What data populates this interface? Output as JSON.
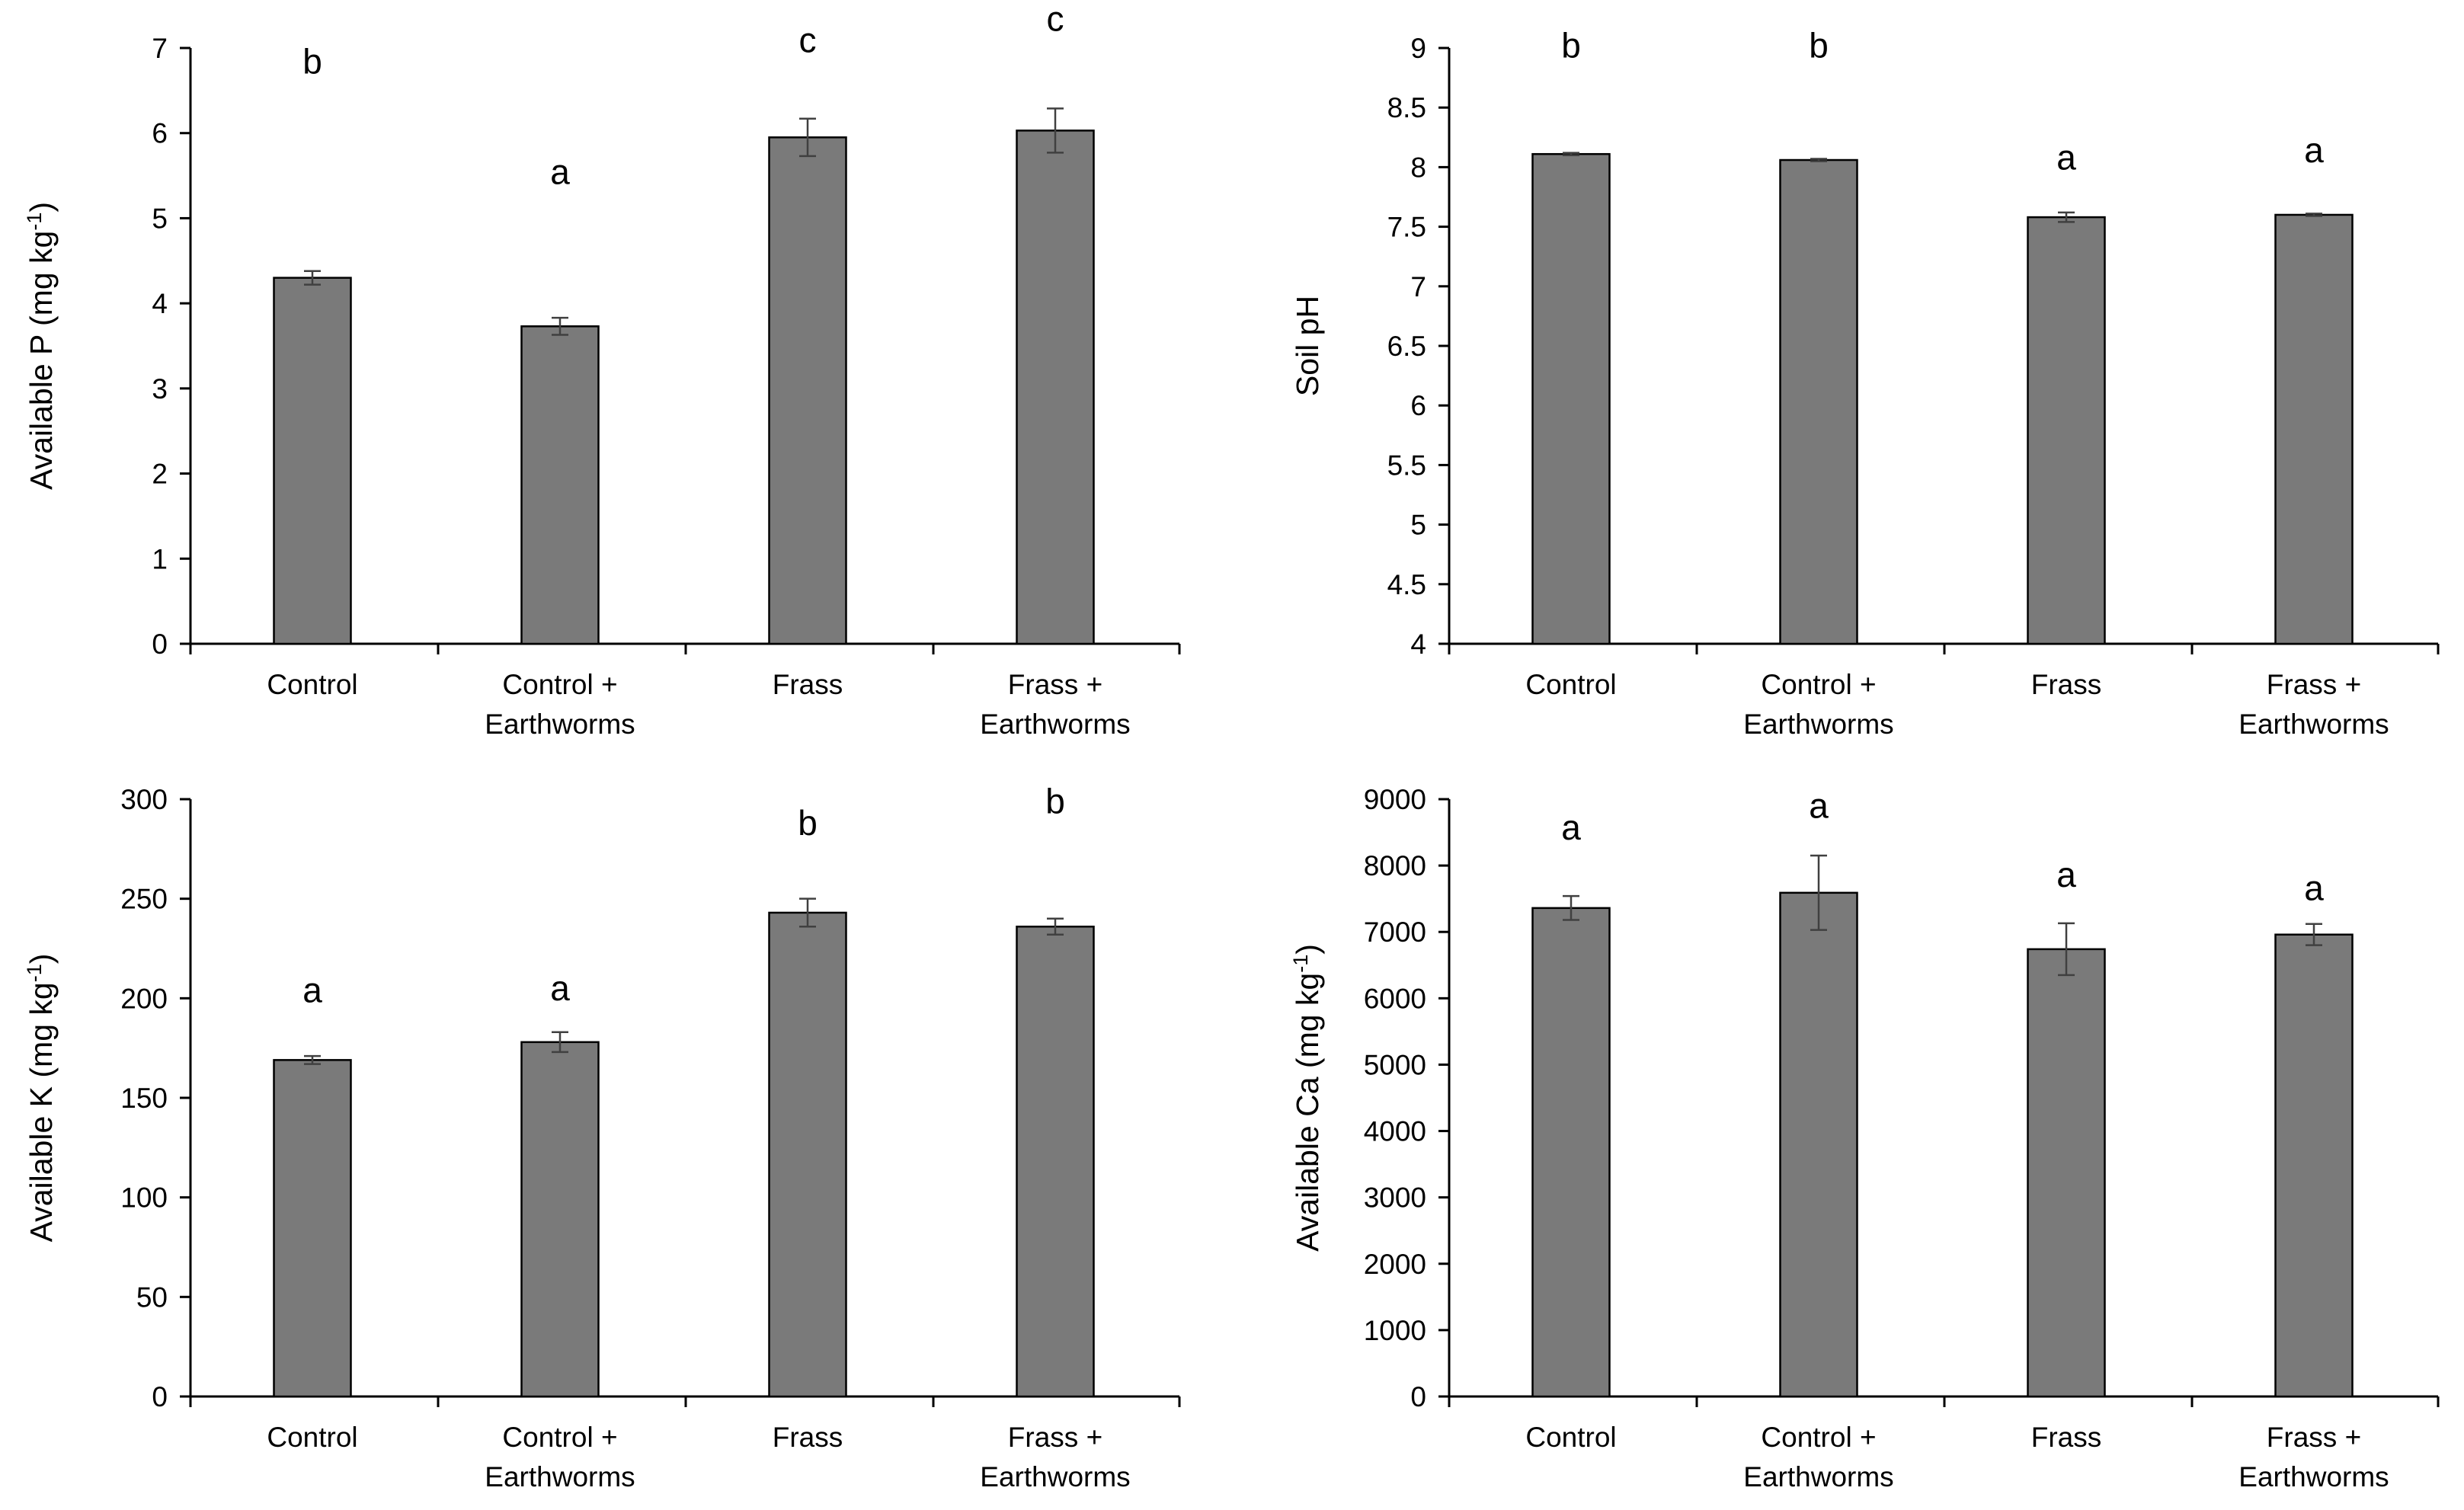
{
  "chart_data": [
    {
      "id": "p",
      "type": "bar",
      "categories": [
        [
          "Control"
        ],
        [
          "Control +",
          "Earthworms"
        ],
        [
          "Frass"
        ],
        [
          "Frass +",
          "Earthworms"
        ]
      ],
      "values": [
        4.3,
        3.73,
        5.95,
        6.03
      ],
      "errors": [
        0.08,
        0.1,
        0.22,
        0.26
      ],
      "significance": [
        "b",
        "a",
        "c",
        "c"
      ],
      "ylabel": "Available P (mg kg",
      "ylabel_sup": "-1",
      "ylabel_end": ")",
      "ylim": [
        0,
        7
      ],
      "yticks": [
        0,
        1,
        2,
        3,
        4,
        5,
        6,
        7
      ],
      "ytick_labels": [
        "0",
        "1",
        "2",
        "3",
        "4",
        "5",
        "6",
        "7"
      ],
      "sig_value": [
        6.7,
        5.4,
        6.95,
        7.2
      ]
    },
    {
      "id": "ph",
      "type": "bar",
      "categories": [
        [
          "Control"
        ],
        [
          "Control +",
          "Earthworms"
        ],
        [
          "Frass"
        ],
        [
          "Frass +",
          "Earthworms"
        ]
      ],
      "values": [
        8.11,
        8.06,
        7.58,
        7.6
      ],
      "errors": [
        0.01,
        0.01,
        0.04,
        0.01
      ],
      "significance": [
        "b",
        "b",
        "a",
        "a"
      ],
      "ylabel": "Soil pH",
      "ylabel_sup": "",
      "ylabel_end": "",
      "ylim": [
        4,
        9
      ],
      "yticks": [
        4,
        4.5,
        5,
        5.5,
        6,
        6.5,
        7,
        7.5,
        8,
        8.5,
        9
      ],
      "ytick_labels": [
        "4",
        "4.5",
        "5",
        "5.5",
        "6",
        "6.5",
        "7",
        "7.5",
        "8",
        "8.5",
        "9"
      ],
      "sig_value": [
        8.92,
        8.92,
        7.98,
        8.04
      ]
    },
    {
      "id": "k",
      "type": "bar",
      "categories": [
        [
          "Control"
        ],
        [
          "Control +",
          "Earthworms"
        ],
        [
          "Frass"
        ],
        [
          "Frass +",
          "Earthworms"
        ]
      ],
      "values": [
        169,
        178,
        243,
        236
      ],
      "errors": [
        2,
        5,
        7,
        4
      ],
      "significance": [
        "a",
        "a",
        "b",
        "b"
      ],
      "ylabel": "Available K (mg kg",
      "ylabel_sup": "-1",
      "ylabel_end": ")",
      "ylim": [
        0,
        300
      ],
      "yticks": [
        0,
        50,
        100,
        150,
        200,
        250,
        300
      ],
      "ytick_labels": [
        "0",
        "50",
        "100",
        "150",
        "200",
        "250",
        "300"
      ],
      "sig_value": [
        198,
        199,
        282,
        293
      ]
    },
    {
      "id": "ca",
      "type": "bar",
      "categories": [
        [
          "Control"
        ],
        [
          "Control +",
          "Earthworms"
        ],
        [
          "Frass"
        ],
        [
          "Frass +",
          "Earthworms"
        ]
      ],
      "values": [
        7360,
        7590,
        6740,
        6960
      ],
      "errors": [
        180,
        560,
        390,
        160
      ],
      "significance": [
        "a",
        "a",
        "a",
        "a"
      ],
      "ylabel": "Available Ca (mg kg",
      "ylabel_sup": "-1",
      "ylabel_end": ")",
      "ylim": [
        0,
        9000
      ],
      "yticks": [
        0,
        1000,
        2000,
        3000,
        4000,
        5000,
        6000,
        7000,
        8000,
        9000
      ],
      "ytick_labels": [
        "0",
        "1000",
        "2000",
        "3000",
        "4000",
        "5000",
        "6000",
        "7000",
        "8000",
        "9000"
      ],
      "sig_value": [
        8390,
        8720,
        7680,
        7480
      ]
    }
  ],
  "colors": {
    "bar_fill": "#7a7a7a",
    "bar_stroke": "#000000",
    "axis": "#000000",
    "error_bar": "#404040"
  }
}
